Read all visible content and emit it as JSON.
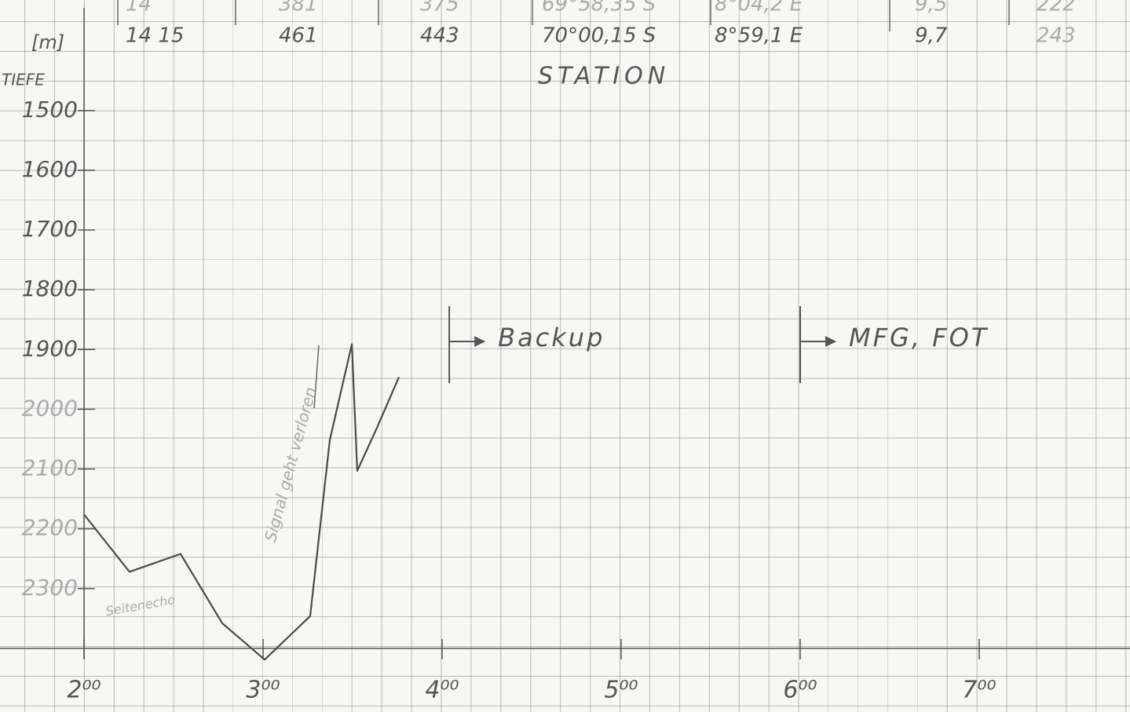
{
  "chart_data": {
    "type": "line",
    "table_rows": [
      [
        "14",
        "381",
        "375",
        "69°58,35 S",
        "8°04,2 E",
        "9,5",
        "222"
      ],
      [
        "14 15",
        "461",
        "443",
        "70°00,15 S",
        "8°59,1 E",
        "9,7",
        "243"
      ]
    ],
    "station_label": "STATION",
    "y_unit": "[m]",
    "ylabel": "TIEFE",
    "x": [
      2.0,
      2.254,
      2.539,
      2.772,
      3.009,
      3.263,
      3.373,
      3.496,
      3.526,
      3.636,
      3.759
    ],
    "series": [
      {
        "color": "#4a4a4a",
        "values": [
          2176,
          2272,
          2242,
          2358,
          2419,
          2346,
          2051,
          1891,
          2103,
          2031,
          1946
        ]
      }
    ],
    "xlim": [
      2,
      7.84
    ],
    "xticks": [
      {
        "value": 2,
        "label": "2⁰⁰"
      },
      {
        "value": 3,
        "label": "3⁰⁰"
      },
      {
        "value": 4,
        "label": "4⁰⁰"
      },
      {
        "value": 5,
        "label": "5⁰⁰"
      },
      {
        "value": 6,
        "label": "6⁰⁰"
      },
      {
        "value": 7,
        "label": "7⁰⁰"
      }
    ],
    "ylim": [
      2500,
      1315
    ],
    "yticks": [
      1500,
      1600,
      1700,
      1800,
      1900,
      2000,
      2100,
      2200,
      2300
    ],
    "events": [
      {
        "label": "Backup",
        "x": 4.04
      },
      {
        "label": "MFG, FOT",
        "x": 6.0
      }
    ],
    "annotations": [
      "Seitenecho",
      "Signal geht verloren"
    ]
  }
}
